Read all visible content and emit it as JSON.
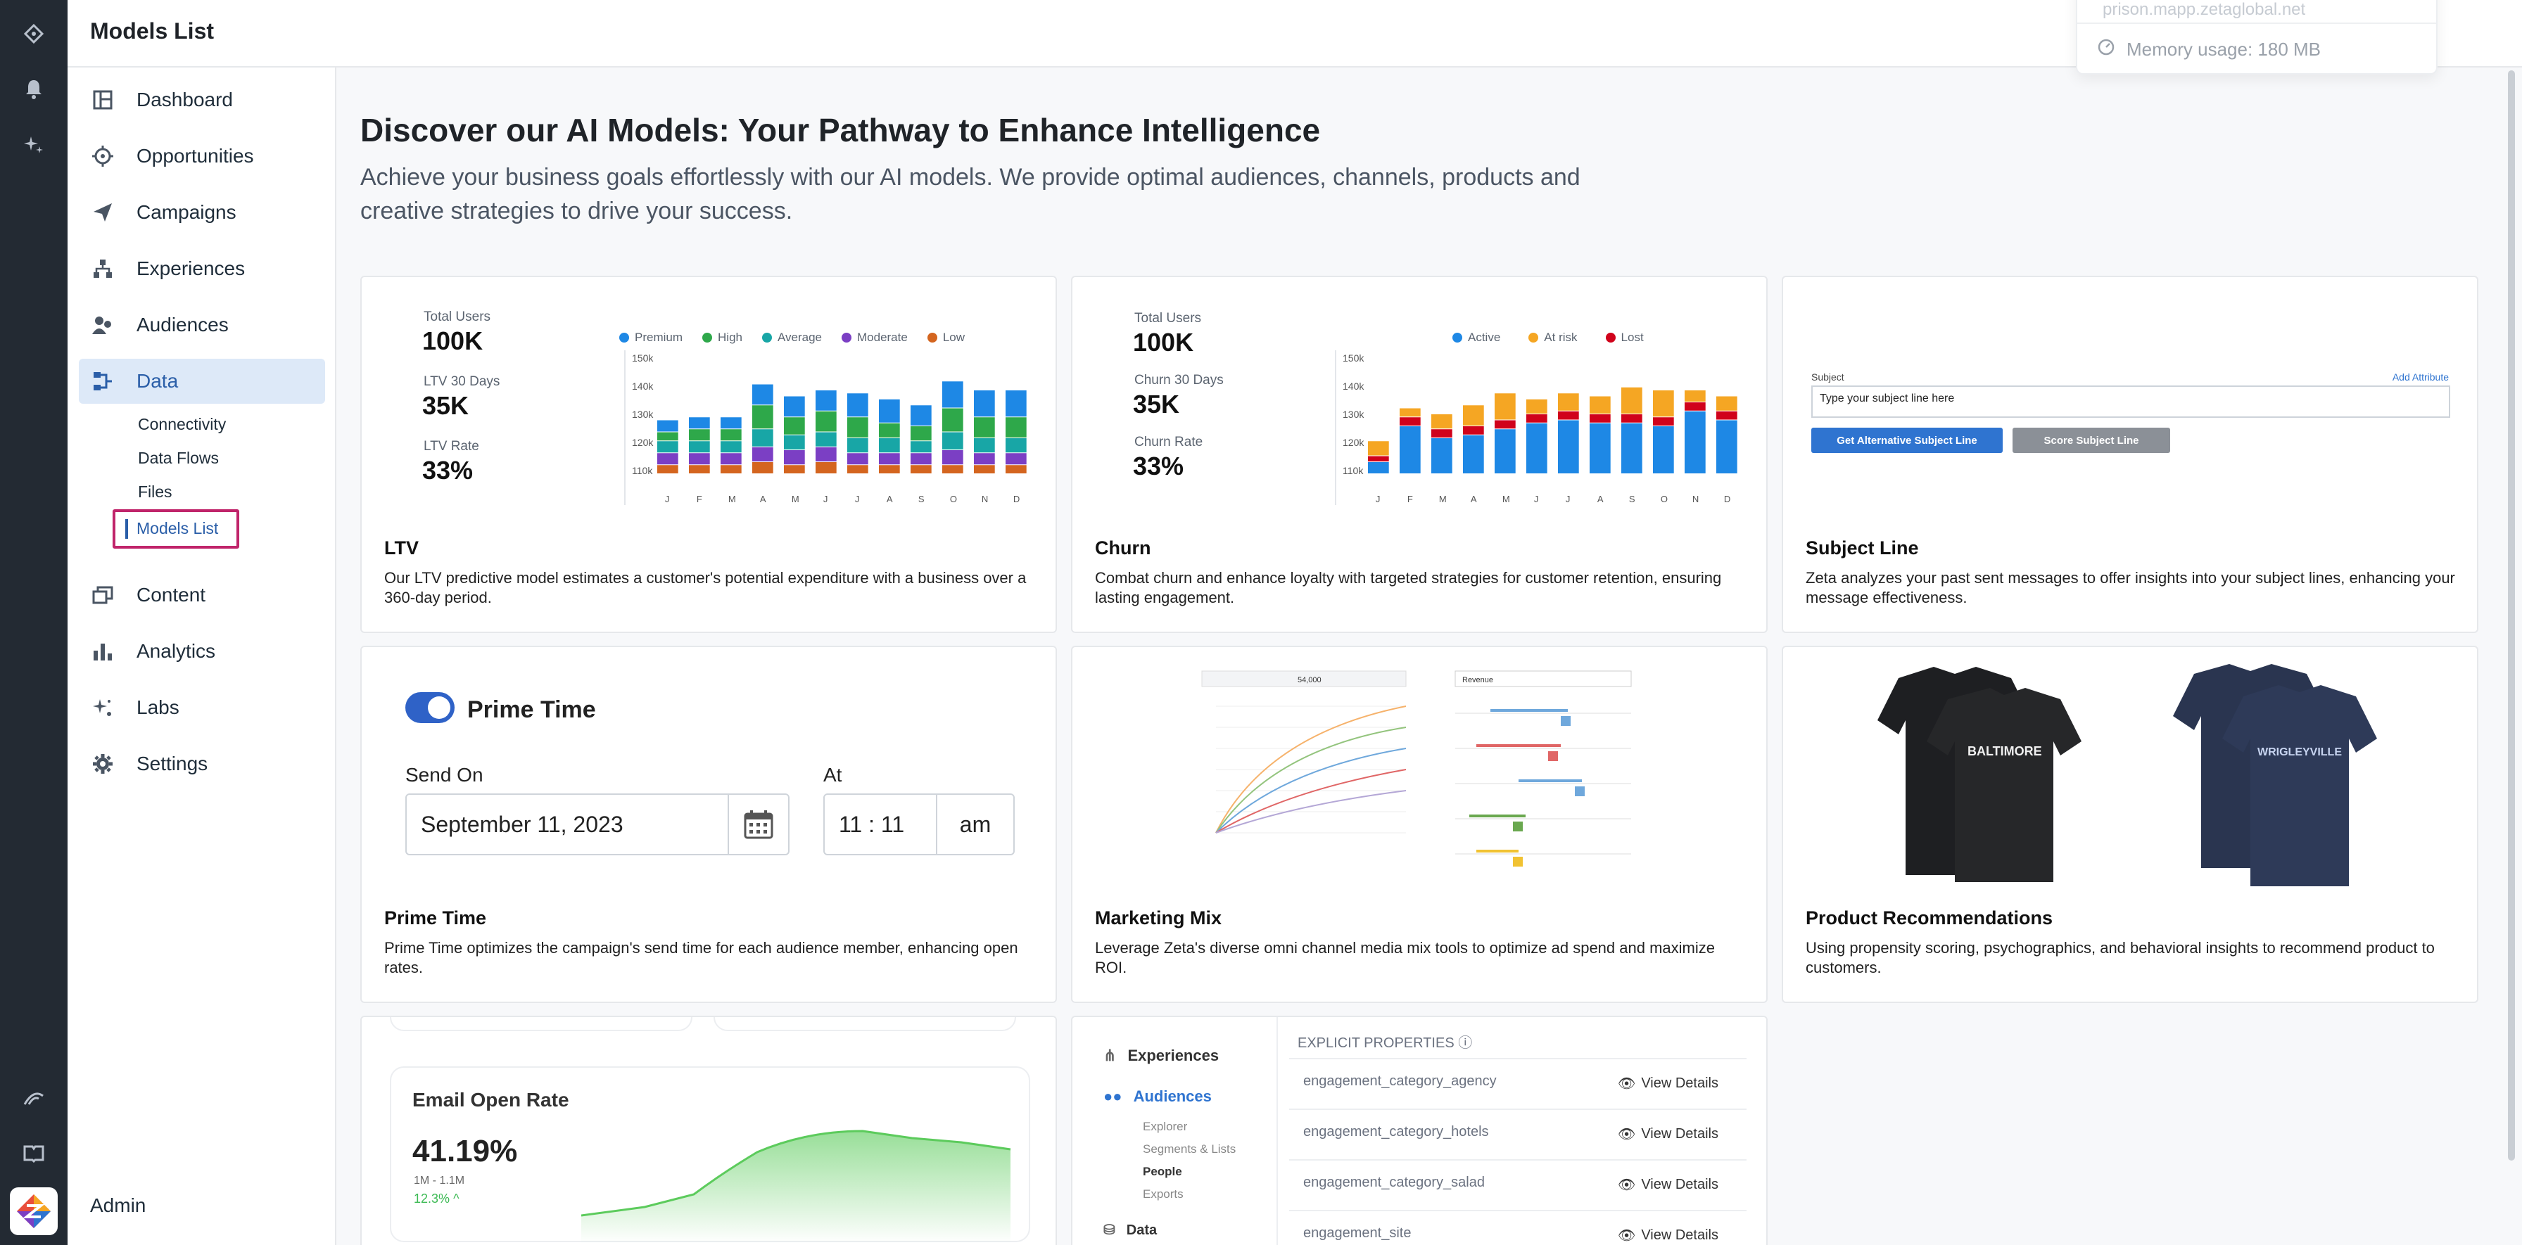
{
  "app": {
    "title": "Models List"
  },
  "memory_popup": {
    "hint": "prison.mapp.zetaglobal.net",
    "text": "Memory usage: 180 MB"
  },
  "nav": {
    "items": [
      {
        "label": "Dashboard",
        "icon": "dashboard-icon"
      },
      {
        "label": "Opportunities",
        "icon": "target-icon"
      },
      {
        "label": "Campaigns",
        "icon": "paper-plane-icon"
      },
      {
        "label": "Experiences",
        "icon": "hierarchy-icon"
      },
      {
        "label": "Audiences",
        "icon": "people-icon"
      },
      {
        "label": "Data",
        "icon": "data-flow-icon"
      },
      {
        "label": "Content",
        "icon": "layers-icon"
      },
      {
        "label": "Analytics",
        "icon": "bar-chart-icon"
      },
      {
        "label": "Labs",
        "icon": "sparkle-icon"
      },
      {
        "label": "Settings",
        "icon": "gear-icon"
      }
    ],
    "data_sub": [
      "Connectivity",
      "Data Flows",
      "Files",
      "Models List"
    ],
    "admin": "Admin"
  },
  "main": {
    "heading": "Discover our AI Models: Your Pathway to Enhance Intelligence",
    "subheading": "Achieve your business goals effortlessly with our AI models. We provide optimal audiences, channels, products and creative strategies to drive your success."
  },
  "cards": {
    "ltv": {
      "title": "LTV",
      "desc": "Our LTV predictive model estimates a customer's potential expenditure with a business over a 360-day period.",
      "stats": [
        {
          "label": "Total Users",
          "value": "100K"
        },
        {
          "label": "LTV 30 Days",
          "value": "35K"
        },
        {
          "label": "LTV Rate",
          "value": "33%"
        }
      ],
      "legend": [
        "Premium",
        "High",
        "Average",
        "Moderate",
        "Low"
      ]
    },
    "churn": {
      "title": "Churn",
      "desc": "Combat churn and enhance loyalty with targeted strategies for customer retention, ensuring lasting engagement.",
      "stats": [
        {
          "label": "Total Users",
          "value": "100K"
        },
        {
          "label": "Churn 30 Days",
          "value": "35K"
        },
        {
          "label": "Churn Rate",
          "value": "33%"
        }
      ],
      "legend": [
        "Active",
        "At risk",
        "Lost"
      ]
    },
    "subject": {
      "title": "Subject Line",
      "desc": "Zeta analyzes your past sent messages to offer insights into your subject lines, enhancing your message effectiveness.",
      "field_label": "Subject",
      "add_attr": "Add Attribute",
      "placeholder": "Type your subject line here",
      "btn_alt": "Get Alternative Subject Line",
      "btn_score": "Score Subject Line"
    },
    "prime": {
      "title": "Prime Time",
      "desc": "Prime Time optimizes the campaign's send time for each audience member, enhancing open rates.",
      "toggle_label": "Prime Time",
      "send_on": "Send On",
      "date": "September 11, 2023",
      "at": "At",
      "time": "11 : 11",
      "ampm": "am"
    },
    "mix": {
      "title": "Marketing Mix",
      "desc": "Leverage Zeta's diverse omni channel media mix tools to optimize ad spend and maximize ROI.",
      "budget": "54,000",
      "target": "Revenue"
    },
    "product": {
      "title": "Product Recommendations",
      "desc": "Using propensity scoring, psychographics, and behavioral insights to recommend product to customers.",
      "jersey_left": "BALTIMORE",
      "jersey_right": "WRIGLEYVILLE"
    },
    "email": {
      "title": "Email Open Rate",
      "value": "41.19%",
      "range": "1M - 1.1M",
      "change": "12.3%"
    },
    "props": {
      "menu": [
        "Experiences",
        "Audiences"
      ],
      "sub": [
        "Explorer",
        "Segments & Lists",
        "People",
        "Exports"
      ],
      "menu_last": "Data",
      "header": "EXPLICIT PROPERTIES",
      "rows": [
        "engagement_category_agency",
        "engagement_category_hotels",
        "engagement_category_salad",
        "engagement_site"
      ],
      "action": "View Details"
    }
  },
  "chart_data": [
    {
      "type": "bar",
      "categories": [
        "J",
        "F",
        "M",
        "A",
        "M",
        "J",
        "J",
        "A",
        "S",
        "O",
        "N",
        "D"
      ],
      "ylim": [
        110,
        150
      ],
      "yticks": [
        "150k",
        "140k",
        "130k",
        "120k",
        "110k"
      ],
      "series": [
        {
          "name": "Low",
          "values": [
            3,
            3,
            3,
            4,
            3,
            4,
            3,
            3,
            3,
            3,
            3,
            3
          ]
        },
        {
          "name": "Moderate",
          "values": [
            4,
            4,
            4,
            5,
            5,
            5,
            4,
            4,
            4,
            5,
            4,
            4
          ]
        },
        {
          "name": "Average",
          "values": [
            4,
            4,
            4,
            6,
            5,
            5,
            5,
            5,
            4,
            6,
            5,
            5
          ]
        },
        {
          "name": "High",
          "values": [
            3,
            4,
            4,
            8,
            6,
            7,
            7,
            5,
            5,
            8,
            7,
            7
          ]
        },
        {
          "name": "Premium",
          "values": [
            4,
            4,
            4,
            7,
            7,
            7,
            8,
            8,
            7,
            9,
            9,
            9
          ]
        }
      ]
    },
    {
      "type": "bar",
      "categories": [
        "J",
        "F",
        "M",
        "A",
        "M",
        "J",
        "J",
        "A",
        "S",
        "O",
        "N",
        "D"
      ],
      "ylim": [
        110,
        150
      ],
      "yticks": [
        "150k",
        "140k",
        "130k",
        "120k",
        "110k"
      ],
      "series": [
        {
          "name": "Active",
          "values": [
            4,
            16,
            12,
            13,
            15,
            17,
            18,
            17,
            17,
            16,
            21,
            18
          ]
        },
        {
          "name": "Lost",
          "values": [
            2,
            3,
            3,
            3,
            3,
            3,
            3,
            3,
            3,
            3,
            3,
            3
          ]
        },
        {
          "name": "At risk",
          "values": [
            5,
            3,
            5,
            7,
            9,
            5,
            6,
            6,
            9,
            9,
            4,
            5
          ]
        }
      ]
    }
  ]
}
